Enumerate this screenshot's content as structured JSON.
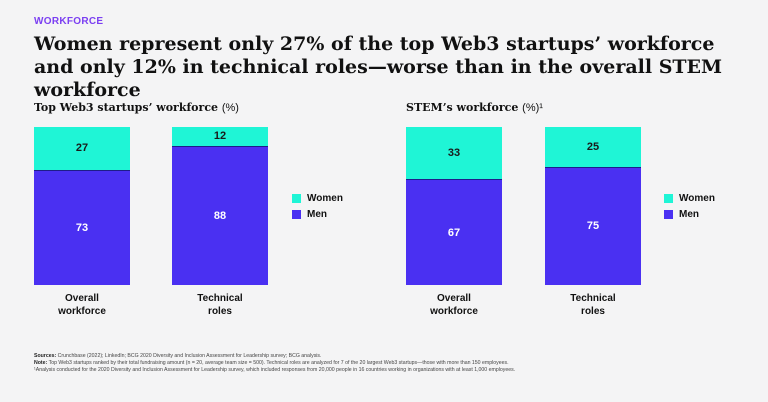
{
  "eyebrow": "WORKFORCE",
  "headline": "Women represent only 27% of the top Web3 startups’ workforce and only 12% in technical roles—worse than in the overall STEM workforce",
  "colors": {
    "women": "#1ff5d6",
    "men": "#4a30f2",
    "eyebrow": "#7b3ff2"
  },
  "legend": {
    "women": "Women",
    "men": "Men"
  },
  "chart_data": [
    {
      "type": "bar",
      "stacked": true,
      "title": "Top Web3 startups’ workforce",
      "unit": "(%)",
      "categories": [
        "Overall\nworkforce",
        "Technical\nroles"
      ],
      "category_lines": [
        [
          "Overall",
          "workforce"
        ],
        [
          "Technical",
          "roles"
        ]
      ],
      "series": [
        {
          "name": "Women",
          "values": [
            27,
            12
          ]
        },
        {
          "name": "Men",
          "values": [
            73,
            88
          ]
        }
      ],
      "ylim": [
        0,
        100
      ],
      "legend_position": "right"
    },
    {
      "type": "bar",
      "stacked": true,
      "title": "STEM’s workforce",
      "unit": "(%)¹",
      "categories": [
        "Overall\nworkforce",
        "Technical\nroles"
      ],
      "category_lines": [
        [
          "Overall",
          "workforce"
        ],
        [
          "Technical",
          "roles"
        ]
      ],
      "series": [
        {
          "name": "Women",
          "values": [
            33,
            25
          ]
        },
        {
          "name": "Men",
          "values": [
            67,
            75
          ]
        }
      ],
      "ylim": [
        0,
        100
      ],
      "legend_position": "right"
    }
  ],
  "footnotes": {
    "sources_label": "Sources:",
    "sources": " Crunchbase (2022); LinkedIn; BCG 2020 Diversity and Inclusion Assessment for Leadership survey; BCG analysis.",
    "note_label": "Note:",
    "note": " Top Web3 startups ranked by their total fundraising amount (n = 20, average team size = 500). Technical roles are analyzed for 7 of the 20 largest Web3 startups—those with more than 150 employees.",
    "footnote1": "¹Analysis conducted for the 2020 Diversity and Inclusion Assessment for Leadership survey, which included responses from 20,000 people in 16 countries working in organizations with at least 1,000 employees."
  }
}
